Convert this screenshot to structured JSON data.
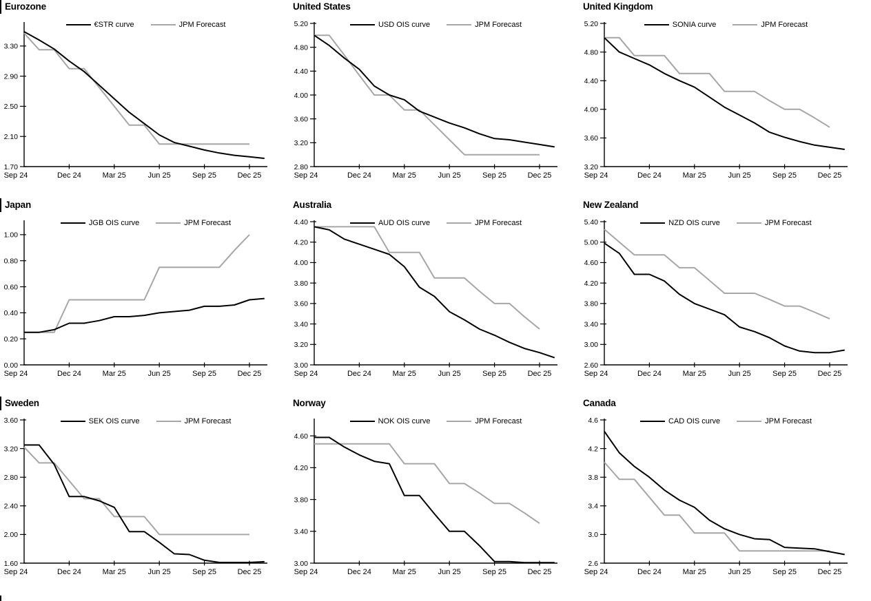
{
  "colors": {
    "curve_line": "#000000",
    "forecast_line": "#a6a6a6",
    "axis": "#000000"
  },
  "chart_data": [
    {
      "type": "line",
      "title": "Eurozone",
      "x_tick_labels": [
        "Sep 24",
        "Dec 24",
        "Mar 25",
        "Jun 25",
        "Sep 25",
        "Dec 25"
      ],
      "y_tick_labels": [
        "1.70",
        "2.10",
        "2.50",
        "2.90",
        "3.30"
      ],
      "ylim": [
        1.7,
        3.6
      ],
      "grid": "off",
      "legend_position": "top-center",
      "series": [
        {
          "name": "€STR curve",
          "color": "#000000",
          "values": [
            3.49,
            3.38,
            3.26,
            3.1,
            2.96,
            2.78,
            2.6,
            2.42,
            2.27,
            2.12,
            2.02,
            1.97,
            1.92,
            1.88,
            1.85,
            1.83,
            1.81
          ]
        },
        {
          "name": "JPM Forecast",
          "color": "#a6a6a6",
          "values": [
            3.47,
            3.25,
            3.25,
            3.0,
            3.0,
            2.75,
            2.5,
            2.25,
            2.25,
            2.0,
            2.0,
            2.0,
            2.0,
            2.0,
            2.0,
            2.0
          ]
        }
      ]
    },
    {
      "type": "line",
      "title": "United States",
      "x_tick_labels": [
        "Sep 24",
        "Dec 24",
        "Mar 25",
        "Jun 25",
        "Sep 25",
        "Dec 25"
      ],
      "y_tick_labels": [
        "2.80",
        "3.20",
        "3.60",
        "4.00",
        "4.40",
        "4.80",
        "5.20"
      ],
      "ylim": [
        2.8,
        5.2
      ],
      "grid": "off",
      "legend_position": "top-center",
      "series": [
        {
          "name": "USD OIS curve",
          "color": "#000000",
          "values": [
            5.0,
            4.83,
            4.62,
            4.43,
            4.15,
            4.0,
            3.92,
            3.73,
            3.63,
            3.53,
            3.45,
            3.35,
            3.27,
            3.25,
            3.21,
            3.17,
            3.13
          ]
        },
        {
          "name": "JPM Forecast",
          "color": "#a6a6a6",
          "values": [
            5.0,
            5.0,
            4.67,
            4.33,
            4.0,
            4.0,
            3.75,
            3.75,
            3.5,
            3.25,
            3.0,
            3.0,
            3.0,
            3.0,
            3.0,
            3.0
          ]
        }
      ]
    },
    {
      "type": "line",
      "title": "United Kingdom",
      "x_tick_labels": [
        "Sep 24",
        "Dec 24",
        "Mar 25",
        "Jun 25",
        "Sep 25",
        "Dec 25"
      ],
      "y_tick_labels": [
        "3.20",
        "3.60",
        "4.00",
        "4.40",
        "4.80",
        "5.20"
      ],
      "ylim": [
        3.2,
        5.2
      ],
      "grid": "off",
      "legend_position": "top-center",
      "series": [
        {
          "name": "SONIA curve",
          "color": "#000000",
          "values": [
            5.0,
            4.8,
            4.71,
            4.62,
            4.5,
            4.4,
            4.31,
            4.17,
            4.03,
            3.92,
            3.81,
            3.68,
            3.61,
            3.55,
            3.5,
            3.47,
            3.44
          ]
        },
        {
          "name": "JPM Forecast",
          "color": "#a6a6a6",
          "values": [
            5.0,
            5.0,
            4.75,
            4.75,
            4.75,
            4.5,
            4.5,
            4.5,
            4.25,
            4.25,
            4.25,
            4.12,
            4.0,
            4.0,
            3.88,
            3.75
          ]
        }
      ]
    },
    {
      "type": "line",
      "title": "Japan",
      "x_tick_labels": [
        "Sep 24",
        "Dec 24",
        "Mar 25",
        "Jun 25",
        "Sep 25",
        "Dec 25"
      ],
      "y_tick_labels": [
        "0.00",
        "0.20",
        "0.40",
        "0.60",
        "0.80",
        "1.00"
      ],
      "ylim": [
        0.0,
        1.1
      ],
      "grid": "off",
      "legend_position": "top-center",
      "series": [
        {
          "name": "JGB OIS curve",
          "color": "#000000",
          "values": [
            0.25,
            0.25,
            0.27,
            0.32,
            0.32,
            0.34,
            0.37,
            0.37,
            0.38,
            0.4,
            0.41,
            0.42,
            0.45,
            0.45,
            0.46,
            0.5,
            0.51
          ]
        },
        {
          "name": "JPM Forecast",
          "color": "#a6a6a6",
          "values": [
            0.25,
            0.25,
            0.25,
            0.5,
            0.5,
            0.5,
            0.5,
            0.5,
            0.5,
            0.75,
            0.75,
            0.75,
            0.75,
            0.75,
            0.88,
            1.0
          ]
        }
      ]
    },
    {
      "type": "line",
      "title": "Australia",
      "x_tick_labels": [
        "Sep 24",
        "Dec 24",
        "Mar 25",
        "Jun 25",
        "Sep 25",
        "Dec 25"
      ],
      "y_tick_labels": [
        "3.00",
        "3.20",
        "3.40",
        "3.60",
        "3.80",
        "4.00",
        "4.20",
        "4.40"
      ],
      "ylim": [
        3.0,
        4.4
      ],
      "grid": "off",
      "legend_position": "top-center",
      "series": [
        {
          "name": "AUD OIS curve",
          "color": "#000000",
          "values": [
            4.35,
            4.32,
            4.23,
            4.18,
            4.13,
            4.08,
            3.96,
            3.76,
            3.67,
            3.52,
            3.44,
            3.35,
            3.29,
            3.22,
            3.16,
            3.12,
            3.07
          ]
        },
        {
          "name": "JPM Forecast",
          "color": "#a6a6a6",
          "values": [
            4.35,
            4.35,
            4.35,
            4.35,
            4.35,
            4.1,
            4.1,
            4.1,
            3.85,
            3.85,
            3.85,
            3.72,
            3.6,
            3.6,
            3.47,
            3.35
          ]
        }
      ]
    },
    {
      "type": "line",
      "title": "New Zealand",
      "x_tick_labels": [
        "Sep 24",
        "Dec 24",
        "Mar 25",
        "Jun 25",
        "Sep 25",
        "Dec 25"
      ],
      "y_tick_labels": [
        "2.60",
        "3.00",
        "3.40",
        "3.80",
        "4.20",
        "4.60",
        "5.00",
        "5.40"
      ],
      "ylim": [
        2.6,
        5.4
      ],
      "grid": "off",
      "legend_position": "top-center",
      "series": [
        {
          "name": "NZD OIS curve",
          "color": "#000000",
          "values": [
            4.98,
            4.78,
            4.37,
            4.37,
            4.24,
            3.98,
            3.8,
            3.69,
            3.58,
            3.34,
            3.25,
            3.13,
            2.97,
            2.87,
            2.84,
            2.84,
            2.89
          ]
        },
        {
          "name": "JPM Forecast",
          "color": "#a6a6a6",
          "values": [
            5.25,
            5.0,
            4.75,
            4.75,
            4.75,
            4.5,
            4.5,
            4.25,
            4.0,
            4.0,
            4.0,
            3.88,
            3.75,
            3.75,
            3.63,
            3.5
          ]
        }
      ]
    },
    {
      "type": "line",
      "title": "Sweden",
      "x_tick_labels": [
        "Sep 24",
        "Dec 24",
        "Mar 25",
        "Jun 25",
        "Sep 25",
        "Dec 25"
      ],
      "y_tick_labels": [
        "1.60",
        "2.00",
        "2.40",
        "2.80",
        "3.20",
        "3.60"
      ],
      "ylim": [
        1.6,
        3.6
      ],
      "grid": "off",
      "legend_position": "top-center",
      "series": [
        {
          "name": "SEK OIS curve",
          "color": "#000000",
          "values": [
            3.25,
            3.25,
            2.98,
            2.53,
            2.53,
            2.47,
            2.38,
            2.04,
            2.04,
            1.89,
            1.73,
            1.72,
            1.64,
            1.61,
            1.61,
            1.61,
            1.62
          ]
        },
        {
          "name": "JPM Forecast",
          "color": "#a6a6a6",
          "values": [
            3.22,
            3.0,
            3.0,
            2.75,
            2.5,
            2.5,
            2.25,
            2.25,
            2.25,
            2.0,
            2.0,
            2.0,
            2.0,
            2.0,
            2.0,
            2.0
          ]
        }
      ]
    },
    {
      "type": "line",
      "title": "Norway",
      "x_tick_labels": [
        "Sep 24",
        "Dec 24",
        "Mar 25",
        "Jun 25",
        "Sep 25",
        "Dec 25"
      ],
      "y_tick_labels": [
        "3.00",
        "3.40",
        "3.80",
        "4.20",
        "4.60"
      ],
      "ylim": [
        3.0,
        4.8
      ],
      "grid": "off",
      "legend_position": "top-center",
      "series": [
        {
          "name": "NOK OIS curve",
          "color": "#000000",
          "values": [
            4.58,
            4.58,
            4.46,
            4.36,
            4.28,
            4.25,
            3.85,
            3.85,
            3.62,
            3.4,
            3.4,
            3.22,
            3.02,
            3.02,
            3.0,
            3.0,
            2.99
          ]
        },
        {
          "name": "JPM Forecast",
          "color": "#a6a6a6",
          "values": [
            4.5,
            4.5,
            4.5,
            4.5,
            4.5,
            4.5,
            4.25,
            4.25,
            4.25,
            4.0,
            4.0,
            3.88,
            3.75,
            3.75,
            3.63,
            3.5
          ]
        }
      ]
    },
    {
      "type": "line",
      "title": "Canada",
      "x_tick_labels": [
        "Sep 24",
        "Dec 24",
        "Mar 25",
        "Jun 25",
        "Sep 25",
        "Dec 25"
      ],
      "y_tick_labels": [
        "2.6",
        "3.0",
        "3.4",
        "3.8",
        "4.2",
        "4.6"
      ],
      "ylim": [
        2.6,
        4.6
      ],
      "grid": "off",
      "legend_position": "top-center",
      "series": [
        {
          "name": "CAD OIS curve",
          "color": "#000000",
          "values": [
            4.44,
            4.14,
            3.95,
            3.8,
            3.62,
            3.48,
            3.38,
            3.2,
            3.08,
            3.0,
            2.94,
            2.93,
            2.82,
            2.81,
            2.8,
            2.76,
            2.72
          ]
        },
        {
          "name": "JPM Forecast",
          "color": "#a6a6a6",
          "values": [
            4.01,
            3.77,
            3.77,
            3.52,
            3.27,
            3.27,
            3.02,
            3.02,
            3.02,
            2.77,
            2.77,
            2.77,
            2.77,
            2.77,
            2.77,
            2.77
          ]
        }
      ]
    }
  ]
}
